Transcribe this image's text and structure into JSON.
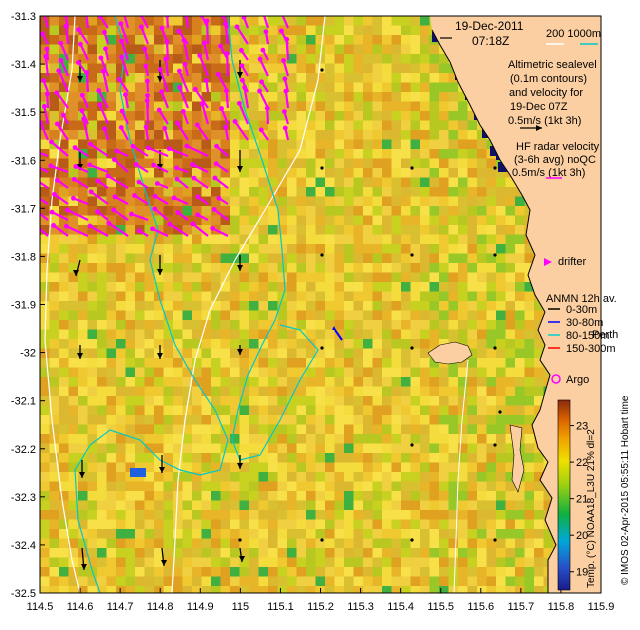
{
  "header": {
    "date": "19-Dec-2011",
    "time": "07:18Z",
    "scale_label": "200  1000m"
  },
  "legend": {
    "altimetry": [
      "Altimetric sealevel",
      "(0.1m contours)",
      "and velocity for",
      "19-Dec 07Z",
      "0.5m/s (1kt 3h)"
    ],
    "hf_radar": [
      "HF radar velocity",
      "(3-6h avg) noQC",
      "0.5m/s (1kt 3h)"
    ],
    "drifter": "drifter",
    "anmn_title": "ANMN 12h av.",
    "anmn_items": [
      {
        "label": "0-30m",
        "color": "#000000"
      },
      {
        "label": "30-80m",
        "color": "#0000ff"
      },
      {
        "label": "80-150m",
        "color": "#00d0d0"
      },
      {
        "label": "150-300m",
        "color": "#ff0000"
      }
    ],
    "argo": "Argo",
    "place": "Perth"
  },
  "colorbar": {
    "title": "Temp. (°C) NOAA18_L3U 21% dl=2",
    "ticks": [
      "19",
      "20",
      "21",
      "22",
      "23"
    ],
    "range": [
      18.5,
      23.7
    ]
  },
  "credit": "© IMOS 02-Apr-2015 05:55:11 Hobart time",
  "axes": {
    "xlim": [
      114.5,
      115.9
    ],
    "ylim": [
      -32.5,
      -31.3
    ],
    "x_ticks": [
      "114.5",
      "114.6",
      "114.7",
      "114.8",
      "114.9",
      "115",
      "115.1",
      "115.2",
      "115.3",
      "115.4",
      "115.5",
      "115.6",
      "115.7",
      "115.8",
      "115.9"
    ],
    "y_ticks": [
      "-31.3",
      "-31.4",
      "-31.5",
      "-31.6",
      "-31.7",
      "-31.8",
      "-31.9",
      "-32",
      "-32.1",
      "-32.2",
      "-32.3",
      "-32.4",
      "-32.5"
    ]
  },
  "colors": {
    "land": "#fbcfa2",
    "radar_arrow": "#ff00ff",
    "argo": "#ff00ff",
    "isobath_200": "#00c8c8",
    "isobath_1000": "#ffffff"
  }
}
